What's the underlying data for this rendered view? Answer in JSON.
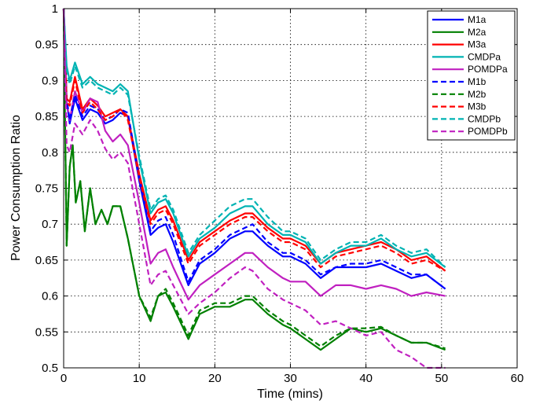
{
  "chart_data": {
    "type": "line",
    "title": "",
    "xlabel": "Time (mins)",
    "ylabel": "Power Consumption Ratio",
    "xlim": [
      0,
      60
    ],
    "ylim": [
      0.5,
      1
    ],
    "xticks": [
      "0",
      "10",
      "20",
      "30",
      "40",
      "50",
      "60"
    ],
    "yticks": [
      "0.5",
      "0.55",
      "0.6",
      "0.65",
      "0.7",
      "0.75",
      "0.8",
      "0.85",
      "0.9",
      "0.95",
      "1"
    ],
    "grid": true,
    "legend_position": "top-right",
    "series": [
      {
        "name": "M1a",
        "color": "#0000ff",
        "dash": "solid",
        "x": [
          0,
          0.4,
          0.8,
          1.5,
          2.5,
          3.5,
          4.5,
          5.5,
          6.5,
          7.5,
          8.5,
          10,
          11.5,
          12.5,
          13.5,
          14.5,
          16.5,
          18,
          20,
          22,
          24,
          25,
          27,
          29,
          30,
          32,
          34,
          36,
          38,
          40,
          42,
          44,
          46,
          48,
          50.5
        ],
        "y": [
          1,
          0.87,
          0.84,
          0.875,
          0.845,
          0.86,
          0.855,
          0.84,
          0.845,
          0.855,
          0.85,
          0.76,
          0.685,
          0.695,
          0.7,
          0.675,
          0.615,
          0.645,
          0.66,
          0.68,
          0.69,
          0.69,
          0.67,
          0.655,
          0.655,
          0.645,
          0.625,
          0.64,
          0.64,
          0.64,
          0.645,
          0.635,
          0.625,
          0.63,
          0.61
        ]
      },
      {
        "name": "M2a",
        "color": "#008000",
        "dash": "solid",
        "x": [
          0,
          0.4,
          0.8,
          1.2,
          1.6,
          2.2,
          2.8,
          3.5,
          4.2,
          5,
          5.8,
          6.5,
          7.5,
          8.5,
          10,
          11.5,
          12.5,
          13.5,
          14.5,
          16.5,
          18,
          20,
          22,
          24,
          25,
          27,
          29,
          30,
          32,
          34,
          36,
          38,
          40,
          42,
          44,
          46,
          48,
          50.5
        ],
        "y": [
          1,
          0.67,
          0.78,
          0.81,
          0.73,
          0.76,
          0.69,
          0.75,
          0.7,
          0.72,
          0.7,
          0.725,
          0.725,
          0.68,
          0.6,
          0.565,
          0.6,
          0.605,
          0.585,
          0.54,
          0.575,
          0.585,
          0.585,
          0.595,
          0.595,
          0.575,
          0.56,
          0.555,
          0.54,
          0.525,
          0.54,
          0.555,
          0.55,
          0.555,
          0.545,
          0.535,
          0.535,
          0.525
        ]
      },
      {
        "name": "M3a",
        "color": "#ff0000",
        "dash": "solid",
        "x": [
          0,
          0.4,
          0.8,
          1.5,
          2.5,
          3.5,
          4.5,
          5.5,
          6.5,
          7.5,
          8.5,
          10,
          11.5,
          12.5,
          13.5,
          14.5,
          16.5,
          18,
          20,
          22,
          24,
          25,
          27,
          29,
          30,
          32,
          34,
          36,
          38,
          40,
          42,
          44,
          46,
          48,
          50.5
        ],
        "y": [
          1,
          0.875,
          0.87,
          0.905,
          0.86,
          0.875,
          0.865,
          0.85,
          0.855,
          0.86,
          0.85,
          0.77,
          0.705,
          0.72,
          0.725,
          0.705,
          0.65,
          0.675,
          0.69,
          0.705,
          0.715,
          0.715,
          0.695,
          0.68,
          0.68,
          0.67,
          0.645,
          0.66,
          0.665,
          0.67,
          0.675,
          0.665,
          0.65,
          0.655,
          0.635
        ]
      },
      {
        "name": "CMDPa",
        "color": "#00b3b3",
        "dash": "solid",
        "x": [
          0,
          0.4,
          0.8,
          1.5,
          2.5,
          3.5,
          4.5,
          5.5,
          6.5,
          7.5,
          8.5,
          10,
          11.5,
          12.5,
          13.5,
          14.5,
          16.5,
          18,
          20,
          22,
          24,
          25,
          27,
          29,
          30,
          32,
          34,
          36,
          38,
          40,
          42,
          44,
          46,
          48,
          50.5
        ],
        "y": [
          1,
          0.92,
          0.9,
          0.925,
          0.895,
          0.905,
          0.895,
          0.89,
          0.885,
          0.895,
          0.885,
          0.79,
          0.715,
          0.73,
          0.735,
          0.715,
          0.655,
          0.68,
          0.695,
          0.715,
          0.725,
          0.725,
          0.7,
          0.685,
          0.685,
          0.675,
          0.645,
          0.66,
          0.67,
          0.67,
          0.68,
          0.665,
          0.655,
          0.66,
          0.64
        ]
      },
      {
        "name": "POMDPa",
        "color": "#c020c0",
        "dash": "solid",
        "x": [
          0,
          0.4,
          0.8,
          1.5,
          2.5,
          3.5,
          4.5,
          5.5,
          6.5,
          7.5,
          8.5,
          10,
          11.5,
          12.5,
          13.5,
          14.5,
          16.5,
          18,
          20,
          22,
          24,
          25,
          27,
          29,
          30,
          32,
          34,
          36,
          38,
          40,
          42,
          44,
          46,
          48,
          50.5
        ],
        "y": [
          1,
          0.87,
          0.845,
          0.885,
          0.855,
          0.875,
          0.87,
          0.83,
          0.815,
          0.825,
          0.81,
          0.73,
          0.645,
          0.66,
          0.665,
          0.64,
          0.595,
          0.615,
          0.63,
          0.645,
          0.66,
          0.66,
          0.64,
          0.625,
          0.62,
          0.62,
          0.6,
          0.615,
          0.615,
          0.61,
          0.615,
          0.61,
          0.6,
          0.605,
          0.6
        ]
      },
      {
        "name": "M1b",
        "color": "#0000ff",
        "dash": "dashed",
        "x": [
          0,
          0.4,
          0.8,
          1.5,
          2.5,
          3.5,
          4.5,
          5.5,
          6.5,
          7.5,
          8.5,
          10,
          11.5,
          12.5,
          13.5,
          14.5,
          16.5,
          18,
          20,
          22,
          24,
          25,
          27,
          29,
          30,
          32,
          34,
          36,
          38,
          40,
          42,
          44,
          46,
          48,
          50.5
        ],
        "y": [
          1,
          0.875,
          0.845,
          0.88,
          0.85,
          0.865,
          0.86,
          0.845,
          0.85,
          0.86,
          0.855,
          0.765,
          0.69,
          0.705,
          0.71,
          0.685,
          0.62,
          0.65,
          0.665,
          0.685,
          0.695,
          0.7,
          0.675,
          0.66,
          0.66,
          0.65,
          0.63,
          0.64,
          0.645,
          0.645,
          0.65,
          0.64,
          0.63,
          0.63,
          0.61
        ]
      },
      {
        "name": "M2b",
        "color": "#008000",
        "dash": "dashed",
        "x": [
          0,
          0.4,
          0.8,
          1.2,
          1.6,
          2.2,
          2.8,
          3.5,
          4.2,
          5,
          5.8,
          6.5,
          7.5,
          8.5,
          10,
          11.5,
          12.5,
          13.5,
          14.5,
          16.5,
          18,
          20,
          22,
          24,
          25,
          27,
          29,
          30,
          32,
          34,
          36,
          38,
          40,
          42,
          44,
          46,
          48,
          50.5
        ],
        "y": [
          1,
          0.67,
          0.78,
          0.81,
          0.73,
          0.76,
          0.69,
          0.75,
          0.7,
          0.72,
          0.7,
          0.725,
          0.725,
          0.68,
          0.6,
          0.57,
          0.6,
          0.61,
          0.59,
          0.545,
          0.58,
          0.59,
          0.59,
          0.6,
          0.6,
          0.58,
          0.565,
          0.56,
          0.545,
          0.53,
          0.545,
          0.555,
          0.555,
          0.557,
          0.545,
          0.535,
          0.535,
          0.527
        ]
      },
      {
        "name": "M3b",
        "color": "#ff0000",
        "dash": "dashed",
        "x": [
          0,
          0.4,
          0.8,
          1.5,
          2.5,
          3.5,
          4.5,
          5.5,
          6.5,
          7.5,
          8.5,
          10,
          11.5,
          12.5,
          13.5,
          14.5,
          16.5,
          18,
          20,
          22,
          24,
          25,
          27,
          29,
          30,
          32,
          34,
          36,
          38,
          40,
          42,
          44,
          46,
          48,
          50.5
        ],
        "y": [
          1,
          0.87,
          0.865,
          0.9,
          0.855,
          0.87,
          0.86,
          0.845,
          0.85,
          0.86,
          0.845,
          0.765,
          0.7,
          0.715,
          0.72,
          0.7,
          0.645,
          0.67,
          0.685,
          0.7,
          0.71,
          0.71,
          0.69,
          0.675,
          0.675,
          0.665,
          0.64,
          0.655,
          0.66,
          0.665,
          0.67,
          0.66,
          0.645,
          0.65,
          0.635
        ]
      },
      {
        "name": "CMDPb",
        "color": "#00b3b3",
        "dash": "dashed",
        "x": [
          0,
          0.4,
          0.8,
          1.5,
          2.5,
          3.5,
          4.5,
          5.5,
          6.5,
          7.5,
          8.5,
          10,
          11.5,
          12.5,
          13.5,
          14.5,
          16.5,
          18,
          20,
          22,
          24,
          25,
          27,
          29,
          30,
          32,
          34,
          36,
          38,
          40,
          42,
          44,
          46,
          48,
          50.5
        ],
        "y": [
          1,
          0.915,
          0.895,
          0.92,
          0.89,
          0.9,
          0.89,
          0.885,
          0.88,
          0.89,
          0.88,
          0.795,
          0.72,
          0.735,
          0.74,
          0.72,
          0.66,
          0.685,
          0.705,
          0.725,
          0.735,
          0.735,
          0.71,
          0.69,
          0.69,
          0.68,
          0.65,
          0.665,
          0.675,
          0.675,
          0.685,
          0.67,
          0.66,
          0.665,
          0.64
        ]
      },
      {
        "name": "POMDPb",
        "color": "#c020c0",
        "dash": "dashed",
        "x": [
          0,
          0.4,
          0.8,
          1.5,
          2.5,
          3.5,
          4.5,
          5.5,
          6.5,
          7.5,
          8.5,
          10,
          11.5,
          12.5,
          13.5,
          14.5,
          16.5,
          18,
          20,
          22,
          24,
          25,
          27,
          29,
          30,
          32,
          34,
          36,
          38,
          40,
          42,
          44,
          46,
          48,
          50.5
        ],
        "y": [
          1,
          0.81,
          0.8,
          0.84,
          0.825,
          0.845,
          0.83,
          0.805,
          0.79,
          0.8,
          0.785,
          0.7,
          0.615,
          0.63,
          0.635,
          0.615,
          0.575,
          0.59,
          0.605,
          0.625,
          0.64,
          0.635,
          0.61,
          0.595,
          0.59,
          0.58,
          0.56,
          0.565,
          0.555,
          0.545,
          0.55,
          0.525,
          0.515,
          0.5,
          0.5
        ]
      }
    ]
  }
}
